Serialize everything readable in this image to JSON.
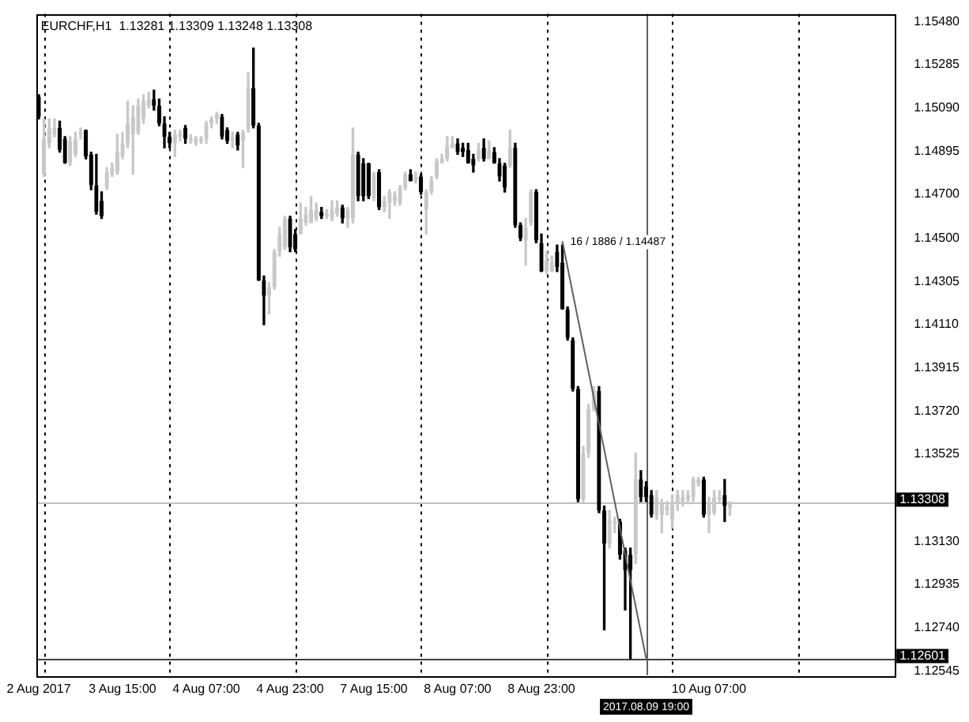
{
  "chart_data": {
    "type": "candlestick",
    "title": "EURCHF,H1  1.13281 1.13309 1.13248 1.13308",
    "categories": [
      "2 Aug 2017",
      null,
      null,
      null,
      null,
      null,
      null,
      null,
      null,
      null,
      null,
      null,
      null,
      null,
      null,
      null,
      "3 Aug 15:00",
      null,
      null,
      null,
      null,
      null,
      null,
      null,
      null,
      null,
      null,
      null,
      null,
      null,
      null,
      null,
      "4 Aug 07:00",
      null,
      null,
      null,
      null,
      null,
      null,
      null,
      null,
      null,
      null,
      null,
      null,
      null,
      null,
      null,
      "4 Aug 23:00",
      null,
      null,
      null,
      null,
      null,
      null,
      null,
      null,
      null,
      null,
      null,
      null,
      null,
      null,
      null,
      "7 Aug 15:00",
      null,
      null,
      null,
      null,
      null,
      null,
      null,
      null,
      null,
      null,
      null,
      null,
      null,
      null,
      null,
      "8 Aug 07:00",
      null,
      null,
      null,
      null,
      null,
      null,
      null,
      null,
      null,
      null,
      null,
      null,
      null,
      null,
      null,
      "8 Aug 23:00",
      null,
      null,
      null,
      null,
      null,
      null,
      null,
      null,
      null,
      null,
      null,
      null,
      null,
      null,
      null,
      null,
      null,
      null,
      null,
      "2017.08.09 19:00",
      null,
      null,
      null,
      null,
      null,
      null,
      null,
      null,
      null,
      null,
      null,
      "10 Aug 07:00",
      null,
      null,
      null,
      null,
      null,
      null,
      null,
      null,
      null,
      null,
      null,
      null,
      null,
      null,
      null,
      null,
      null,
      null,
      null,
      null,
      null,
      null,
      null,
      null,
      null,
      null,
      null,
      null,
      null,
      null,
      null,
      null,
      null,
      null,
      null
    ],
    "colors": [
      "#000000",
      "#c8c8c8",
      "#c8c8c8",
      "#c8c8c8",
      "#000000",
      "#000000",
      "#c8c8c8",
      "#c8c8c8",
      "#c8c8c8",
      "#000000",
      "#000000",
      "#000000",
      "#000000",
      "#c8c8c8",
      "#c8c8c8",
      "#c8c8c8",
      "#c8c8c8",
      "#c8c8c8",
      "#c8c8c8",
      "#c8c8c8",
      "#c8c8c8",
      "#c8c8c8",
      "#000000",
      "#000000",
      "#000000",
      "#000000",
      "#c8c8c8",
      "#c8c8c8",
      "#000000",
      "#c8c8c8",
      "#c8c8c8",
      "#c8c8c8",
      "#c8c8c8",
      "#c8c8c8",
      "#c8c8c8",
      "#000000",
      "#000000",
      "#c8c8c8",
      "#000000",
      "#c8c8c8",
      "#c8c8c8",
      "#000000",
      "#000000",
      "#000000",
      "#c8c8c8",
      "#c8c8c8",
      "#c8c8c8",
      "#c8c8c8",
      "#000000",
      "#000000",
      "#c8c8c8",
      "#c8c8c8",
      "#c8c8c8",
      "#c8c8c8",
      "#000000",
      "#c8c8c8",
      "#c8c8c8",
      "#c8c8c8",
      "#000000",
      "#c8c8c8",
      "#c8c8c8",
      "#000000",
      "#000000",
      "#000000",
      "#c8c8c8",
      "#000000",
      "#c8c8c8",
      "#c8c8c8",
      "#c8c8c8",
      "#c8c8c8",
      "#c8c8c8",
      "#000000",
      "#c8c8c8",
      "#000000",
      "#c8c8c8",
      "#c8c8c8",
      "#c8c8c8",
      "#c8c8c8",
      "#c8c8c8",
      "#c8c8c8",
      "#000000",
      "#000000",
      "#000000",
      "#000000",
      "#c8c8c8",
      "#000000",
      "#c8c8c8",
      "#000000",
      "#000000",
      "#000000",
      "#c8c8c8",
      "#000000",
      "#000000",
      "#c8c8c8",
      "#c8c8c8",
      "#000000",
      "#000000",
      "#c8c8c8",
      "#c8c8c8",
      "#000000",
      "#000000",
      "#000000",
      "#000000",
      "#000000",
      "#c8c8c8",
      "#c8c8c8",
      "#c8c8c8",
      "#000000",
      "#000000",
      "#c8c8c8",
      "#c8c8c8",
      "#000000",
      "#000000",
      "#000000",
      "#c8c8c8",
      "#000000",
      "#000000",
      "#000000",
      "#c8c8c8",
      "#c8c8c8",
      "#c8c8c8",
      "#c8c8c8",
      "#c8c8c8",
      "#c8c8c8",
      "#c8c8c8",
      "#c8c8c8",
      "#c8c8c8",
      "#000000",
      "#c8c8c8",
      "#c8c8c8",
      "#c8c8c8",
      "#000000",
      "#c8c8c8",
      null,
      null,
      null,
      null,
      null,
      null,
      null,
      null,
      null,
      null,
      null,
      null,
      null,
      null,
      null,
      null,
      null,
      null,
      null,
      null,
      null,
      null,
      null,
      null,
      null,
      null,
      null,
      null,
      null,
      null,
      null
    ],
    "ohlc": [
      [
        1.1514,
        1.1515,
        1.1504,
        1.1505
      ],
      [
        1.1479,
        1.1504,
        1.1478,
        1.1495
      ],
      [
        1.1493,
        1.1504,
        1.1491,
        1.15
      ],
      [
        1.1497,
        1.1504,
        1.1496,
        1.15
      ],
      [
        1.15,
        1.1503,
        1.1489,
        1.149
      ],
      [
        1.1495,
        1.1496,
        1.1484,
        1.1484
      ],
      [
        1.1484,
        1.1496,
        1.1483,
        1.1494
      ],
      [
        1.1488,
        1.1498,
        1.1487,
        1.1495
      ],
      [
        1.1497,
        1.15,
        1.1495,
        1.1498
      ],
      [
        1.1499,
        1.1499,
        1.1486,
        1.1487
      ],
      [
        1.1488,
        1.1489,
        1.1472,
        1.1474
      ],
      [
        1.1474,
        1.1488,
        1.1461,
        1.1462
      ],
      [
        1.1467,
        1.1471,
        1.1459,
        1.146
      ],
      [
        1.1473,
        1.1482,
        1.1472,
        1.148
      ],
      [
        1.1479,
        1.1484,
        1.1478,
        1.1482
      ],
      [
        1.148,
        1.1497,
        1.1479,
        1.1489
      ],
      [
        1.1487,
        1.1498,
        1.1486,
        1.1493
      ],
      [
        1.1493,
        1.1512,
        1.1491,
        1.1502
      ],
      [
        1.1497,
        1.151,
        1.1479,
        1.1505
      ],
      [
        1.1498,
        1.1513,
        1.1497,
        1.151
      ],
      [
        1.1504,
        1.1515,
        1.1502,
        1.1512
      ],
      [
        1.151,
        1.1516,
        1.1509,
        1.1513
      ],
      [
        1.1513,
        1.1517,
        1.1508,
        1.151
      ],
      [
        1.151,
        1.1513,
        1.1501,
        1.1502
      ],
      [
        1.1502,
        1.1505,
        1.1491,
        1.1496
      ],
      [
        1.1496,
        1.1498,
        1.1491,
        1.1493
      ],
      [
        1.1493,
        1.1499,
        1.1487,
        1.1497
      ],
      [
        1.1496,
        1.1499,
        1.1494,
        1.1498
      ],
      [
        1.15,
        1.1501,
        1.1493,
        1.1495
      ],
      [
        1.1494,
        1.1497,
        1.1493,
        1.1495
      ],
      [
        1.1493,
        1.1496,
        1.1492,
        1.1495
      ],
      [
        1.1494,
        1.1496,
        1.1493,
        1.1495
      ],
      [
        1.1495,
        1.1503,
        1.1493,
        1.1502
      ],
      [
        1.1502,
        1.1505,
        1.15,
        1.1504
      ],
      [
        1.1504,
        1.1507,
        1.1502,
        1.1506
      ],
      [
        1.1505,
        1.1506,
        1.1495,
        1.1496
      ],
      [
        1.1499,
        1.15,
        1.1493,
        1.1494
      ],
      [
        1.1494,
        1.1498,
        1.1491,
        1.1496
      ],
      [
        1.1497,
        1.1498,
        1.149,
        1.1492
      ],
      [
        1.1494,
        1.1499,
        1.1482,
        1.1498
      ],
      [
        1.1499,
        1.1525,
        1.1498,
        1.1518
      ],
      [
        1.1518,
        1.1536,
        1.15,
        1.1501
      ],
      [
        1.1501,
        1.1502,
        1.1431,
        1.1431
      ],
      [
        1.1431,
        1.1433,
        1.1411,
        1.1424
      ],
      [
        1.1424,
        1.143,
        1.1416,
        1.1428
      ],
      [
        1.1428,
        1.1445,
        1.1427,
        1.1444
      ],
      [
        1.1444,
        1.1455,
        1.1442,
        1.1452
      ],
      [
        1.1446,
        1.146,
        1.1445,
        1.1459
      ],
      [
        1.1459,
        1.146,
        1.1444,
        1.1446
      ],
      [
        1.1452,
        1.1454,
        1.1444,
        1.1445
      ],
      [
        1.1452,
        1.1466,
        1.1452,
        1.1459
      ],
      [
        1.1457,
        1.1464,
        1.1456,
        1.1461
      ],
      [
        1.1457,
        1.1469,
        1.1457,
        1.1463
      ],
      [
        1.1459,
        1.1466,
        1.1458,
        1.1463
      ],
      [
        1.1462,
        1.1464,
        1.1459,
        1.146
      ],
      [
        1.146,
        1.1463,
        1.1459,
        1.1461
      ],
      [
        1.1459,
        1.1467,
        1.1458,
        1.1463
      ],
      [
        1.1461,
        1.1467,
        1.146,
        1.1464
      ],
      [
        1.1464,
        1.1465,
        1.1457,
        1.1459
      ],
      [
        1.1459,
        1.1464,
        1.1455,
        1.1463
      ],
      [
        1.1459,
        1.15,
        1.1457,
        1.1488
      ],
      [
        1.1488,
        1.1489,
        1.1467,
        1.1469
      ],
      [
        1.1484,
        1.1486,
        1.1467,
        1.1469
      ],
      [
        1.1484,
        1.1484,
        1.1468,
        1.1469
      ],
      [
        1.1468,
        1.148,
        1.1467,
        1.1479
      ],
      [
        1.148,
        1.1481,
        1.1463,
        1.1464
      ],
      [
        1.1464,
        1.1469,
        1.1462,
        1.1467
      ],
      [
        1.1466,
        1.1472,
        1.1459,
        1.1471
      ],
      [
        1.1467,
        1.1471,
        1.1465,
        1.1469
      ],
      [
        1.1466,
        1.1474,
        1.1465,
        1.1473
      ],
      [
        1.1473,
        1.148,
        1.1472,
        1.1479
      ],
      [
        1.1479,
        1.1481,
        1.1476,
        1.1476
      ],
      [
        1.1476,
        1.148,
        1.1475,
        1.1478
      ],
      [
        1.1478,
        1.1479,
        1.147,
        1.1471
      ],
      [
        1.1463,
        1.1472,
        1.1452,
        1.1471
      ],
      [
        1.1471,
        1.1478,
        1.147,
        1.1476
      ],
      [
        1.1478,
        1.1486,
        1.1477,
        1.1485
      ],
      [
        1.1484,
        1.1488,
        1.1484,
        1.1486
      ],
      [
        1.1486,
        1.1496,
        1.1485,
        1.1492
      ],
      [
        1.1491,
        1.1496,
        1.1491,
        1.1493
      ],
      [
        1.1493,
        1.1495,
        1.1488,
        1.1489
      ],
      [
        1.1491,
        1.1493,
        1.1487,
        1.1489
      ],
      [
        1.149,
        1.1493,
        1.1484,
        1.1484
      ],
      [
        1.1486,
        1.1488,
        1.148,
        1.1483
      ],
      [
        1.1486,
        1.1493,
        1.1485,
        1.149
      ],
      [
        1.1491,
        1.1495,
        1.1485,
        1.1486
      ],
      [
        1.1486,
        1.1494,
        1.1486,
        1.149
      ],
      [
        1.1489,
        1.1491,
        1.1484,
        1.1484
      ],
      [
        1.1484,
        1.1486,
        1.1476,
        1.1478
      ],
      [
        1.1483,
        1.1484,
        1.1471,
        1.1473
      ],
      [
        1.1483,
        1.1499,
        1.1482,
        1.1491
      ],
      [
        1.1491,
        1.1493,
        1.1455,
        1.1456
      ],
      [
        1.1456,
        1.1457,
        1.1449,
        1.145
      ],
      [
        1.1449,
        1.1459,
        1.1438,
        1.1455
      ],
      [
        1.1457,
        1.1472,
        1.1456,
        1.1471
      ],
      [
        1.1471,
        1.1472,
        1.1448,
        1.1449
      ],
      [
        1.1448,
        1.1452,
        1.1435,
        1.1435
      ],
      [
        1.1435,
        1.1444,
        1.1434,
        1.144
      ],
      [
        1.1435,
        1.1442,
        1.1435,
        1.1439
      ],
      [
        1.1444,
        1.1447,
        1.1435,
        1.1437
      ],
      [
        1.1439,
        1.1447,
        1.1418,
        1.1418
      ],
      [
        1.1418,
        1.1419,
        1.1404,
        1.1405
      ],
      [
        1.1404,
        1.1405,
        1.1381,
        1.1382
      ],
      [
        1.1382,
        1.1383,
        1.1331,
        1.1332
      ],
      [
        1.1332,
        1.1356,
        1.1331,
        1.1353
      ],
      [
        1.1353,
        1.1375,
        1.1351,
        1.1373
      ],
      [
        1.1373,
        1.1383,
        1.1372,
        1.1381
      ],
      [
        1.1381,
        1.1383,
        1.1326,
        1.1327
      ],
      [
        1.1327,
        1.1329,
        1.1273,
        1.1312
      ],
      [
        1.1312,
        1.1327,
        1.131,
        1.1323
      ],
      [
        1.1321,
        1.1324,
        1.1317,
        1.1322
      ],
      [
        1.1322,
        1.1323,
        1.1305,
        1.1307
      ],
      [
        1.1309,
        1.131,
        1.1282,
        1.13
      ],
      [
        1.1307,
        1.131,
        1.12601,
        1.13
      ],
      [
        1.1307,
        1.1353,
        1.1303,
        1.1341
      ],
      [
        1.1341,
        1.1345,
        1.1331,
        1.1333
      ],
      [
        1.1338,
        1.134,
        1.1331,
        1.1333
      ],
      [
        1.1334,
        1.1336,
        1.1324,
        1.1325
      ],
      [
        1.1325,
        1.1336,
        1.1323,
        1.1333
      ],
      [
        1.1325,
        1.1332,
        1.1317,
        1.133
      ],
      [
        1.1327,
        1.1331,
        1.1325,
        1.1329
      ],
      [
        1.1323,
        1.1334,
        1.1319,
        1.133
      ],
      [
        1.133,
        1.1336,
        1.1327,
        1.1334
      ],
      [
        1.1331,
        1.1336,
        1.1329,
        1.1333
      ],
      [
        1.1332,
        1.1336,
        1.133,
        1.1334
      ],
      [
        1.1333,
        1.1342,
        1.1331,
        1.1341
      ],
      [
        1.1339,
        1.1342,
        1.1338,
        1.1341
      ],
      [
        1.1341,
        1.1342,
        1.1324,
        1.1325
      ],
      [
        1.1325,
        1.1333,
        1.1317,
        1.133
      ],
      [
        1.1326,
        1.1336,
        1.1325,
        1.1333
      ],
      [
        1.1332,
        1.1336,
        1.1331,
        1.1333
      ],
      [
        1.1334,
        1.1341,
        1.1322,
        1.1329
      ],
      [
        1.13281,
        1.13309,
        1.13248,
        1.13308
      ],
      null,
      null,
      null,
      null,
      null,
      null,
      null,
      null,
      null,
      null,
      null,
      null,
      null,
      null,
      null,
      null,
      null,
      null,
      null,
      null,
      null,
      null,
      null,
      null,
      null,
      null,
      null,
      null,
      null,
      null,
      null
    ],
    "series": [
      {
        "type": "line",
        "color": "#606060",
        "values": [
          null,
          null,
          null,
          null,
          null,
          null,
          null,
          null,
          null,
          null,
          null,
          null,
          null,
          null,
          null,
          null,
          null,
          null,
          null,
          null,
          null,
          null,
          null,
          null,
          null,
          null,
          null,
          null,
          null,
          null,
          null,
          null,
          null,
          null,
          null,
          null,
          null,
          null,
          null,
          null,
          null,
          null,
          null,
          null,
          null,
          null,
          null,
          null,
          null,
          null,
          null,
          null,
          null,
          null,
          null,
          null,
          null,
          null,
          null,
          null,
          null,
          null,
          null,
          null,
          null,
          null,
          null,
          null,
          null,
          null,
          null,
          null,
          null,
          null,
          null,
          null,
          null,
          null,
          null,
          null,
          null,
          null,
          null,
          null,
          null,
          null,
          null,
          null,
          null,
          null,
          null,
          null,
          null,
          null,
          null,
          null,
          null,
          null,
          null,
          null,
          1.14487,
          null,
          null,
          null,
          null,
          null,
          null,
          null,
          null,
          null,
          null,
          null,
          null,
          null,
          null,
          null,
          1.12601,
          null,
          null,
          null,
          null,
          null,
          null,
          null,
          null,
          null,
          null,
          null,
          null,
          null,
          null,
          null,
          null,
          null,
          null,
          null,
          null,
          null,
          null,
          null,
          null,
          null,
          null,
          null,
          null,
          null,
          null,
          null,
          null,
          null,
          null,
          null,
          null,
          null,
          null,
          null,
          null,
          null,
          null,
          null,
          null,
          null,
          null,
          null
        ]
      }
    ],
    "annotations": [
      "16 / 1886 / 1.14487"
    ],
    "ref_lines": [
      {
        "axis": "y",
        "value": 1.13308,
        "label": "1.13308",
        "color": "#c0c0c0"
      },
      {
        "axis": "y",
        "value": 1.12601,
        "label": "1.12601",
        "color": "#404040"
      },
      {
        "axis": "x",
        "value": "2017.08.09 19:00",
        "color": "#606060"
      }
    ],
    "ylim": [
      1.12525,
      1.15515
    ],
    "yticks": [
      {
        "value": 1.1548,
        "label": "1.15480"
      },
      1.15285,
      {
        "value": 1.1509,
        "label": "1.15090"
      },
      1.14895,
      {
        "value": 1.147,
        "label": "1.14700"
      },
      {
        "value": 1.145,
        "label": "1.14500"
      },
      1.14305,
      {
        "value": 1.1411,
        "label": "1.14110"
      },
      1.13915,
      {
        "value": 1.1372,
        "label": "1.13720"
      },
      1.13525,
      {
        "value": 1.1313,
        "label": "1.13130"
      },
      1.12935,
      {
        "value": 1.1274,
        "label": "1.12740"
      },
      1.12545
    ],
    "grid": "x",
    "marker": "none"
  }
}
